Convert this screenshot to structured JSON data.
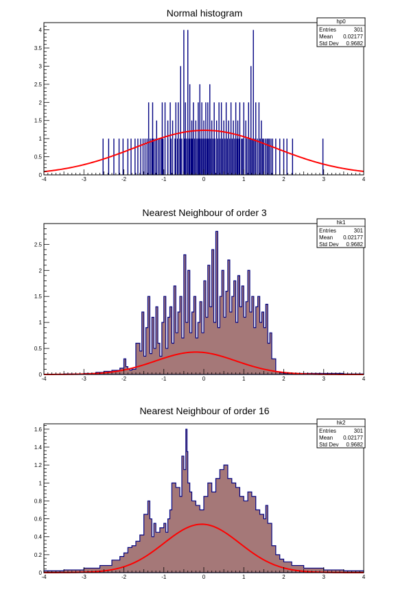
{
  "chart_data": [
    {
      "type": "bar",
      "title": "Normal histogram",
      "xlabel": "",
      "ylabel": "",
      "xlim": [
        -4,
        4
      ],
      "ylim": [
        0,
        4.2
      ],
      "x_ticks": [
        "-4",
        "-3",
        "-2",
        "-1",
        "0",
        "1",
        "2",
        "3",
        "4"
      ],
      "y_ticks": [
        "0",
        "0.5",
        "1",
        "1.5",
        "2",
        "2.5",
        "3",
        "3.5",
        "4"
      ],
      "fill": false,
      "hist_color": "#000080",
      "fit_color": "#ff0000",
      "fit": {
        "amplitude": 1.23,
        "mean": 0.02177,
        "sigma": 1.76
      },
      "stats": {
        "name": "hp0",
        "rows": [
          {
            "label": "Entries",
            "value": "301"
          },
          {
            "label": "Mean",
            "value": "0.02177"
          },
          {
            "label": "Std Dev",
            "value": "0.9682"
          }
        ]
      },
      "spikes": [
        [
          -2.52,
          1
        ],
        [
          -2.38,
          1
        ],
        [
          -2.25,
          1
        ],
        [
          -2.12,
          1
        ],
        [
          -2.02,
          1
        ],
        [
          -1.9,
          1
        ],
        [
          -1.82,
          1
        ],
        [
          -1.72,
          1
        ],
        [
          -1.65,
          1
        ],
        [
          -1.58,
          1
        ],
        [
          -1.52,
          1
        ],
        [
          -1.47,
          1
        ],
        [
          -1.42,
          1
        ],
        [
          -1.38,
          1
        ],
        [
          -1.34,
          1
        ],
        [
          -1.3,
          1
        ],
        [
          -1.26,
          1
        ],
        [
          -1.22,
          1
        ],
        [
          -1.18,
          1
        ],
        [
          -1.14,
          1
        ],
        [
          -1.1,
          1
        ],
        [
          -1.06,
          1
        ],
        [
          -1.02,
          1
        ],
        [
          -1.38,
          2
        ],
        [
          -1.28,
          2
        ],
        [
          -1.18,
          1.5
        ],
        [
          -1.04,
          2
        ],
        [
          -0.97,
          2
        ],
        [
          -0.9,
          1.5
        ],
        [
          -0.84,
          2
        ],
        [
          -0.78,
          1.5
        ],
        [
          -0.7,
          2
        ],
        [
          -0.64,
          2
        ],
        [
          -0.58,
          3
        ],
        [
          -0.5,
          4
        ],
        [
          -0.46,
          2
        ],
        [
          -0.4,
          4
        ],
        [
          -0.35,
          2.5
        ],
        [
          -0.3,
          1.5
        ],
        [
          -0.26,
          2
        ],
        [
          -0.2,
          1.5
        ],
        [
          -0.14,
          2
        ],
        [
          -0.1,
          2.5
        ],
        [
          -0.05,
          2
        ],
        [
          0.0,
          1.5
        ],
        [
          0.05,
          2
        ],
        [
          0.1,
          2
        ],
        [
          0.15,
          2.5
        ],
        [
          0.2,
          1.5
        ],
        [
          0.26,
          2
        ],
        [
          0.32,
          1.5
        ],
        [
          0.38,
          2
        ],
        [
          0.44,
          2
        ],
        [
          0.5,
          1.5
        ],
        [
          0.56,
          2
        ],
        [
          0.62,
          1.5
        ],
        [
          0.68,
          2
        ],
        [
          0.74,
          1.5
        ],
        [
          0.8,
          2
        ],
        [
          0.85,
          1.5
        ],
        [
          0.9,
          2
        ],
        [
          1.0,
          2
        ],
        [
          1.05,
          1.5
        ],
        [
          1.12,
          2
        ],
        [
          1.18,
          3
        ],
        [
          1.24,
          4
        ],
        [
          1.3,
          2
        ],
        [
          1.38,
          2
        ],
        [
          1.44,
          1.5
        ],
        [
          1.5,
          1
        ],
        [
          1.58,
          1
        ],
        [
          1.64,
          1
        ],
        [
          1.72,
          1
        ],
        [
          1.8,
          1
        ],
        [
          1.9,
          1
        ],
        [
          2.0,
          1
        ],
        [
          2.08,
          1
        ],
        [
          2.22,
          1
        ],
        [
          2.98,
          1
        ],
        [
          -0.9,
          1
        ],
        [
          -0.82,
          1
        ],
        [
          -0.72,
          1
        ],
        [
          -0.66,
          1
        ],
        [
          -0.6,
          1
        ],
        [
          -0.55,
          1
        ],
        [
          -0.48,
          1
        ],
        [
          -0.43,
          1
        ],
        [
          -0.37,
          1
        ],
        [
          -0.32,
          1
        ],
        [
          -0.28,
          1
        ],
        [
          -0.23,
          1
        ],
        [
          -0.17,
          1
        ],
        [
          -0.12,
          1
        ],
        [
          -0.07,
          1
        ],
        [
          -0.02,
          1
        ],
        [
          0.03,
          1
        ],
        [
          0.08,
          1
        ],
        [
          0.12,
          1
        ],
        [
          0.17,
          1
        ],
        [
          0.23,
          1
        ],
        [
          0.28,
          1
        ],
        [
          0.35,
          1
        ],
        [
          0.41,
          1
        ],
        [
          0.47,
          1
        ],
        [
          0.53,
          1
        ],
        [
          0.59,
          1
        ],
        [
          0.65,
          1
        ],
        [
          0.71,
          1
        ],
        [
          0.77,
          1
        ],
        [
          0.83,
          1
        ],
        [
          0.88,
          1
        ],
        [
          0.94,
          1
        ],
        [
          0.97,
          1
        ],
        [
          1.08,
          1
        ],
        [
          1.15,
          1
        ],
        [
          1.21,
          1
        ],
        [
          1.27,
          1
        ],
        [
          1.34,
          1
        ],
        [
          1.41,
          1
        ],
        [
          1.47,
          1
        ],
        [
          1.54,
          1
        ],
        [
          1.61,
          1
        ],
        [
          1.68,
          1
        ]
      ]
    },
    {
      "type": "area",
      "title": "Nearest Neighbour of order 3",
      "xlabel": "",
      "ylabel": "",
      "xlim": [
        -4,
        4
      ],
      "ylim": [
        0,
        2.9
      ],
      "x_ticks": [
        "-4",
        "-3",
        "-2",
        "-1",
        "0",
        "1",
        "2",
        "3",
        "4"
      ],
      "y_ticks": [
        "0",
        "0.5",
        "1",
        "1.5",
        "2",
        "2.5"
      ],
      "fill": true,
      "fill_color": "#a57878",
      "hist_color": "#000080",
      "fit_color": "#ff0000",
      "fit": {
        "amplitude": 0.43,
        "mean": -0.2,
        "sigma": 1.0
      },
      "stats": {
        "name": "hk1",
        "rows": [
          {
            "label": "Entries",
            "value": "301"
          },
          {
            "label": "Mean",
            "value": "0.02177"
          },
          {
            "label": "Std Dev",
            "value": "0.9682"
          }
        ]
      },
      "x": [
        -4.0,
        -3.5,
        -3.0,
        -2.7,
        -2.5,
        -2.3,
        -2.1,
        -2.0,
        -1.95,
        -1.9,
        -1.85,
        -1.8,
        -1.7,
        -1.6,
        -1.55,
        -1.5,
        -1.45,
        -1.4,
        -1.35,
        -1.3,
        -1.25,
        -1.2,
        -1.15,
        -1.1,
        -1.05,
        -1.0,
        -0.95,
        -0.9,
        -0.85,
        -0.8,
        -0.75,
        -0.7,
        -0.65,
        -0.6,
        -0.55,
        -0.5,
        -0.45,
        -0.4,
        -0.35,
        -0.3,
        -0.25,
        -0.2,
        -0.15,
        -0.1,
        -0.05,
        0.0,
        0.05,
        0.1,
        0.15,
        0.2,
        0.25,
        0.3,
        0.35,
        0.4,
        0.45,
        0.5,
        0.55,
        0.6,
        0.65,
        0.7,
        0.75,
        0.8,
        0.85,
        0.9,
        0.95,
        1.0,
        1.05,
        1.1,
        1.15,
        1.2,
        1.25,
        1.3,
        1.35,
        1.4,
        1.45,
        1.5,
        1.55,
        1.6,
        1.65,
        1.7,
        1.8,
        1.9,
        2.0,
        2.2,
        2.5,
        3.0,
        3.5,
        4.0
      ],
      "values": [
        0.0,
        0.01,
        0.02,
        0.04,
        0.06,
        0.08,
        0.12,
        0.3,
        0.15,
        0.1,
        0.08,
        0.1,
        0.6,
        0.45,
        1.2,
        0.35,
        0.9,
        1.5,
        0.4,
        1.1,
        0.5,
        1.3,
        0.6,
        0.35,
        1.0,
        1.5,
        0.5,
        1.1,
        1.3,
        0.6,
        1.7,
        0.8,
        1.2,
        1.5,
        0.7,
        2.3,
        1.0,
        2.0,
        0.8,
        1.2,
        1.5,
        0.7,
        1.0,
        1.4,
        0.8,
        1.8,
        1.1,
        2.1,
        1.3,
        2.4,
        1.0,
        2.75,
        0.9,
        1.5,
        2.0,
        1.1,
        1.6,
        2.2,
        1.2,
        1.5,
        1.8,
        1.0,
        1.9,
        1.3,
        1.7,
        1.1,
        1.4,
        2.0,
        1.2,
        1.5,
        0.9,
        1.3,
        1.5,
        1.0,
        1.2,
        0.9,
        1.35,
        0.6,
        0.8,
        0.3,
        0.05,
        0.03,
        0.02,
        0.02,
        0.02,
        0.02,
        0.01,
        0.0
      ]
    },
    {
      "type": "area",
      "title": "Nearest Neighbour of order 16",
      "xlabel": "",
      "ylabel": "",
      "xlim": [
        -4,
        4
      ],
      "ylim": [
        0,
        1.66
      ],
      "x_ticks": [
        "-4",
        "-3",
        "-2",
        "-1",
        "0",
        "1",
        "2",
        "3",
        "4"
      ],
      "y_ticks": [
        "0",
        "0.2",
        "0.4",
        "0.6",
        "0.8",
        "1",
        "1.2",
        "1.4",
        "1.6"
      ],
      "fill": true,
      "fill_color": "#a57878",
      "hist_color": "#000080",
      "fit_color": "#ff0000",
      "fit": {
        "amplitude": 0.54,
        "mean": -0.05,
        "sigma": 0.95
      },
      "stats": {
        "name": "hk2",
        "rows": [
          {
            "label": "Entries",
            "value": "301"
          },
          {
            "label": "Mean",
            "value": "0.02177"
          },
          {
            "label": "Std Dev",
            "value": "0.9682"
          }
        ]
      },
      "x": [
        -4.0,
        -3.5,
        -3.0,
        -2.6,
        -2.3,
        -2.1,
        -2.0,
        -1.9,
        -1.8,
        -1.7,
        -1.6,
        -1.5,
        -1.4,
        -1.35,
        -1.3,
        -1.25,
        -1.2,
        -1.1,
        -1.0,
        -0.95,
        -0.9,
        -0.85,
        -0.8,
        -0.7,
        -0.6,
        -0.55,
        -0.5,
        -0.45,
        -0.42,
        -0.4,
        -0.35,
        -0.3,
        -0.2,
        -0.1,
        0.0,
        0.1,
        0.2,
        0.3,
        0.4,
        0.5,
        0.6,
        0.7,
        0.8,
        0.9,
        1.0,
        1.1,
        1.2,
        1.3,
        1.4,
        1.5,
        1.55,
        1.6,
        1.7,
        1.8,
        1.9,
        2.0,
        2.2,
        2.5,
        3.0,
        3.5,
        4.0
      ],
      "values": [
        0.02,
        0.03,
        0.05,
        0.08,
        0.14,
        0.18,
        0.22,
        0.28,
        0.3,
        0.35,
        0.42,
        0.65,
        0.8,
        0.6,
        0.4,
        0.55,
        0.45,
        0.5,
        0.55,
        0.45,
        0.6,
        0.7,
        1.0,
        0.95,
        0.85,
        1.3,
        1.15,
        1.6,
        1.35,
        1.0,
        0.9,
        0.8,
        0.75,
        0.7,
        0.85,
        1.0,
        0.9,
        1.05,
        1.15,
        1.2,
        1.05,
        1.0,
        0.95,
        0.85,
        0.8,
        0.9,
        0.85,
        0.7,
        0.65,
        0.6,
        0.75,
        0.55,
        0.3,
        0.2,
        0.15,
        0.12,
        0.08,
        0.05,
        0.03,
        0.02,
        0.01
      ]
    }
  ]
}
